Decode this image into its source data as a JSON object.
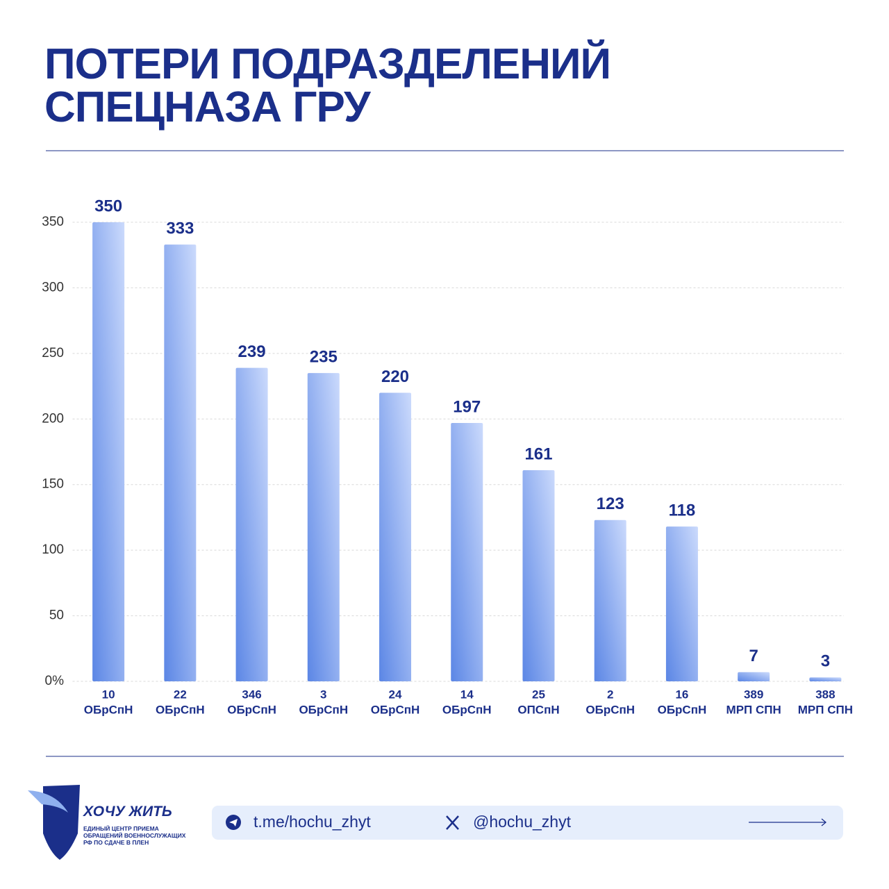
{
  "chart_data": {
    "type": "bar",
    "title": "ПОТЕРИ ПОДРАЗДЕЛЕНИЙ СПЕЦНАЗА ГРУ",
    "categories": [
      [
        "10",
        "ОБрСпН"
      ],
      [
        "22",
        "ОБрСпН"
      ],
      [
        "346",
        "ОБрСпН"
      ],
      [
        "3",
        "ОБрСпН"
      ],
      [
        "24",
        "ОБрСпН"
      ],
      [
        "14",
        "ОБрСпН"
      ],
      [
        "25",
        "ОПСпН"
      ],
      [
        "2",
        "ОБрСпН"
      ],
      [
        "16",
        "ОБрСпН"
      ],
      [
        "389",
        "МРП СПН"
      ],
      [
        "388",
        "МРП СПН"
      ]
    ],
    "values": [
      350,
      333,
      239,
      235,
      220,
      197,
      161,
      123,
      118,
      7,
      3
    ],
    "color": "#5b86e5",
    "ylim": [
      0,
      350
    ],
    "yticks": [
      {
        "value": 0,
        "label": "0%"
      },
      50,
      100,
      150,
      200,
      250,
      300,
      350
    ],
    "grid": true
  },
  "footer": {
    "brand": "ХОЧУ ЖИТЬ",
    "tagline": "ЕДИНЫЙ ЦЕНТР ПРИЕМА ОБРАЩЕНИЙ ВОЕННОСЛУЖАЩИХ РФ ПО СДАЧЕ В ПЛЕН",
    "telegram": "t.me/hochu_zhyt",
    "x": "@hochu_zhyt"
  }
}
